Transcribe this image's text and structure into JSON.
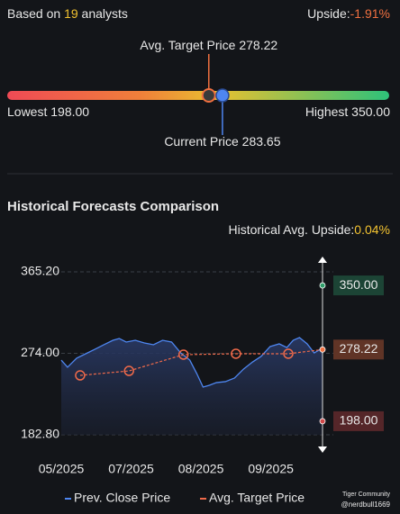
{
  "header": {
    "prefix": "Based on",
    "analysts": 19,
    "suffix": "analysts",
    "upside_label": "Upside:",
    "upside": "-1.91%"
  },
  "gauge": {
    "lowest_label": "Lowest",
    "lowest": {
      "value": 198,
      "label": "198.00"
    },
    "highest_label": "Highest",
    "highest": {
      "value": 350,
      "label": "350.00"
    },
    "target_label": "Avg. Target Price",
    "target": {
      "value": 278.22,
      "label": "278.22"
    },
    "current_label": "Current Price",
    "current": {
      "value": 283.65,
      "label": "283.65"
    }
  },
  "chart_data": {
    "type": "line",
    "title": "Historical Forecasts Comparison",
    "subtitle_label": "Historical Avg. Upside:",
    "subtitle_value": "0.04%",
    "xlim": [
      0,
      3.74
    ],
    "xticks": [
      {
        "value": 0,
        "label": "05/2025"
      },
      {
        "value": 1,
        "label": "07/2025"
      },
      {
        "value": 2,
        "label": "08/2025"
      },
      {
        "value": 3,
        "label": "09/2025"
      }
    ],
    "ylim": [
      182.8,
      365.2
    ],
    "yticks": [
      {
        "value": 365.2,
        "label": "365.20"
      },
      {
        "value": 274,
        "label": "274.00"
      },
      {
        "value": 182.8,
        "label": "182.80"
      }
    ],
    "grid": true,
    "series": [
      {
        "name": "Prev. Close Price",
        "color": "#4e86f0",
        "x": [
          0,
          0.09,
          0.22,
          0.35,
          0.48,
          0.61,
          0.74,
          0.83,
          0.93,
          1.06,
          1.19,
          1.32,
          1.45,
          1.58,
          1.71,
          1.84,
          1.94,
          2.03,
          2.12,
          2.22,
          2.35,
          2.48,
          2.61,
          2.74,
          2.86,
          2.99,
          3.12,
          3.23,
          3.32,
          3.41,
          3.52,
          3.62,
          3.71,
          3.74
        ],
        "values": [
          266.4,
          258.4,
          268.5,
          273.5,
          278.5,
          283.6,
          288.6,
          290.6,
          286.6,
          288.6,
          285.6,
          283.6,
          288.6,
          286.6,
          274.5,
          266.4,
          251.3,
          236.2,
          238.2,
          241.2,
          242.3,
          246.3,
          256.4,
          264.4,
          270.5,
          281.6,
          284.6,
          280.5,
          288.6,
          291.6,
          284.6,
          274.5,
          278.5,
          276.5
        ]
      },
      {
        "name": "Avg. Target Price",
        "color": "#f06a4a",
        "x": [
          0.27,
          0.97,
          1.75,
          2.5,
          3.25,
          3.74
        ],
        "values": [
          249.3,
          254.3,
          272.5,
          273.5,
          273.5,
          278.22
        ]
      }
    ],
    "range_markers": {
      "values": [
        350,
        278.22,
        198
      ],
      "value_labels": [
        "350.00",
        "278.22",
        "198.00"
      ],
      "colors": [
        "#2f9e6a",
        "#f07040",
        "#d04848"
      ]
    },
    "watermark": "Tiger Community",
    "watermark_user": "@nerdbull1669"
  }
}
